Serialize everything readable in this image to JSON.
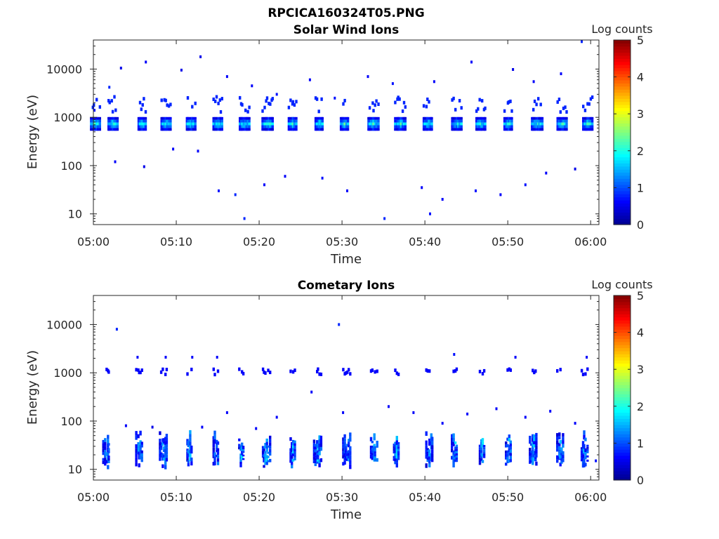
{
  "figure": {
    "title": "RPCICA160324T05.PNG"
  },
  "colormap": [
    "#00008f",
    "#0000ff",
    "#0080ff",
    "#00ffff",
    "#80ff80",
    "#ffff00",
    "#ff8000",
    "#ff0000",
    "#800000"
  ],
  "chart_data": [
    {
      "type": "heatmap",
      "title": "Solar Wind Ions",
      "xlabel": "Time",
      "ylabel": "Energy (eV)",
      "xlim": [
        "05:00",
        "06:01"
      ],
      "ylim": [
        6,
        40000
      ],
      "yscale": "log",
      "x_ticks": [
        "05:00",
        "05:10",
        "05:20",
        "05:30",
        "05:40",
        "05:50",
        "06:00"
      ],
      "y_ticks": [
        "10",
        "100",
        "1000",
        "10000"
      ],
      "colorbar": {
        "label": "Log counts",
        "range": [
          0,
          5
        ],
        "ticks": [
          "0",
          "1",
          "2",
          "3",
          "4",
          "5"
        ]
      },
      "grid": false,
      "description_of_pattern": "Ion bursts every ~3.3 min centered near 700-1000 eV",
      "burst_times_min": [
        0.2,
        2.3,
        5.8,
        8.7,
        11.7,
        15.0,
        18.2,
        21.0,
        24.0,
        27.2,
        30.2,
        33.7,
        37.0,
        40.3,
        43.8,
        46.7,
        50.0,
        53.5,
        56.5,
        59.6
      ],
      "burst_center_energy_eV": 780,
      "burst_peak_log_counts": 2.5,
      "sparse_points": [
        {
          "t": 0.0,
          "E": 1400,
          "c": 0.6
        },
        {
          "t": 1.8,
          "E": 4200,
          "c": 0.8
        },
        {
          "t": 3.2,
          "E": 10500,
          "c": 0.5
        },
        {
          "t": 6.2,
          "E": 14000,
          "c": 0.6
        },
        {
          "t": 10.5,
          "E": 9500,
          "c": 0.5
        },
        {
          "t": 12.8,
          "E": 18000,
          "c": 0.5
        },
        {
          "t": 16.0,
          "E": 7000,
          "c": 0.6
        },
        {
          "t": 19.0,
          "E": 4500,
          "c": 0.6
        },
        {
          "t": 22.0,
          "E": 3000,
          "c": 0.7
        },
        {
          "t": 26.0,
          "E": 6000,
          "c": 0.6
        },
        {
          "t": 29.0,
          "E": 2500,
          "c": 0.7
        },
        {
          "t": 33.0,
          "E": 7000,
          "c": 0.6
        },
        {
          "t": 36.0,
          "E": 5000,
          "c": 0.7
        },
        {
          "t": 41.0,
          "E": 5500,
          "c": 0.6
        },
        {
          "t": 45.5,
          "E": 14000,
          "c": 0.6
        },
        {
          "t": 50.5,
          "E": 9800,
          "c": 0.5
        },
        {
          "t": 53.0,
          "E": 5500,
          "c": 0.6
        },
        {
          "t": 56.3,
          "E": 8000,
          "c": 0.6
        },
        {
          "t": 58.8,
          "E": 37000,
          "c": 0.8
        },
        {
          "t": 2.5,
          "E": 120,
          "c": 0.6
        },
        {
          "t": 6.0,
          "E": 95,
          "c": 0.5
        },
        {
          "t": 9.5,
          "E": 220,
          "c": 0.6
        },
        {
          "t": 12.5,
          "E": 200,
          "c": 0.6
        },
        {
          "t": 15.0,
          "E": 30,
          "c": 0.7
        },
        {
          "t": 17.0,
          "E": 25,
          "c": 0.8
        },
        {
          "t": 18.1,
          "E": 8,
          "c": 0.8
        },
        {
          "t": 20.5,
          "E": 40,
          "c": 0.6
        },
        {
          "t": 23.0,
          "E": 60,
          "c": 0.6
        },
        {
          "t": 27.5,
          "E": 55,
          "c": 0.7
        },
        {
          "t": 30.5,
          "E": 30,
          "c": 0.6
        },
        {
          "t": 35.0,
          "E": 8,
          "c": 0.8
        },
        {
          "t": 39.5,
          "E": 35,
          "c": 0.6
        },
        {
          "t": 40.5,
          "E": 10,
          "c": 0.7
        },
        {
          "t": 42.0,
          "E": 20,
          "c": 0.6
        },
        {
          "t": 46.0,
          "E": 30,
          "c": 0.7
        },
        {
          "t": 49.0,
          "E": 25,
          "c": 0.6
        },
        {
          "t": 52.0,
          "E": 40,
          "c": 0.7
        },
        {
          "t": 54.5,
          "E": 70,
          "c": 0.6
        },
        {
          "t": 58.0,
          "E": 85,
          "c": 0.5
        }
      ]
    },
    {
      "type": "heatmap",
      "title": "Cometary Ions",
      "xlabel": "Time",
      "ylabel": "Energy (eV)",
      "xlim": [
        "05:00",
        "06:01"
      ],
      "ylim": [
        6,
        40000
      ],
      "yscale": "log",
      "x_ticks": [
        "05:00",
        "05:10",
        "05:20",
        "05:30",
        "05:40",
        "05:50",
        "06:00"
      ],
      "y_ticks": [
        "10",
        "100",
        "1000",
        "10000"
      ],
      "colorbar": {
        "label": "Log counts",
        "range": [
          0,
          5
        ],
        "ticks": [
          "0",
          "1",
          "2",
          "3",
          "4",
          "5"
        ]
      },
      "grid": false,
      "description_of_pattern": "Low-energy ion bursts (~10-50 eV) every ~3.3 min with weak ~900 eV signal",
      "burst_times_min": [
        1.5,
        5.5,
        8.4,
        11.5,
        14.7,
        17.8,
        20.8,
        24.0,
        27.0,
        30.5,
        33.8,
        36.5,
        40.5,
        43.5,
        46.8,
        50.0,
        53.0,
        56.3,
        59.2
      ],
      "burst_center_energy_eV": 25,
      "burst_peak_log_counts": 1.8,
      "sparse_points": [
        {
          "t": 2.7,
          "E": 8000,
          "c": 0.8
        },
        {
          "t": 29.5,
          "E": 10000,
          "c": 0.8
        },
        {
          "t": 43.4,
          "E": 2400,
          "c": 0.7
        },
        {
          "t": 5.2,
          "E": 2100,
          "c": 0.6
        },
        {
          "t": 8.6,
          "E": 2100,
          "c": 0.6
        },
        {
          "t": 11.8,
          "E": 2100,
          "c": 0.6
        },
        {
          "t": 14.8,
          "E": 2100,
          "c": 0.6
        },
        {
          "t": 50.8,
          "E": 2100,
          "c": 0.6
        },
        {
          "t": 59.4,
          "E": 2100,
          "c": 0.6
        },
        {
          "t": 3.8,
          "E": 80,
          "c": 0.6
        },
        {
          "t": 7.0,
          "E": 75,
          "c": 0.5
        },
        {
          "t": 13.0,
          "E": 75,
          "c": 0.6
        },
        {
          "t": 16.0,
          "E": 150,
          "c": 0.6
        },
        {
          "t": 19.5,
          "E": 70,
          "c": 0.6
        },
        {
          "t": 22.0,
          "E": 120,
          "c": 0.6
        },
        {
          "t": 26.2,
          "E": 400,
          "c": 0.6
        },
        {
          "t": 30.0,
          "E": 150,
          "c": 0.6
        },
        {
          "t": 35.5,
          "E": 200,
          "c": 0.6
        },
        {
          "t": 38.5,
          "E": 150,
          "c": 0.6
        },
        {
          "t": 42.0,
          "E": 90,
          "c": 0.6
        },
        {
          "t": 45.0,
          "E": 140,
          "c": 0.6
        },
        {
          "t": 48.5,
          "E": 180,
          "c": 0.6
        },
        {
          "t": 52.0,
          "E": 120,
          "c": 0.6
        },
        {
          "t": 55.0,
          "E": 160,
          "c": 0.6
        },
        {
          "t": 58.0,
          "E": 90,
          "c": 0.6
        },
        {
          "t": 60.5,
          "E": 15,
          "c": 0.7
        }
      ]
    }
  ]
}
